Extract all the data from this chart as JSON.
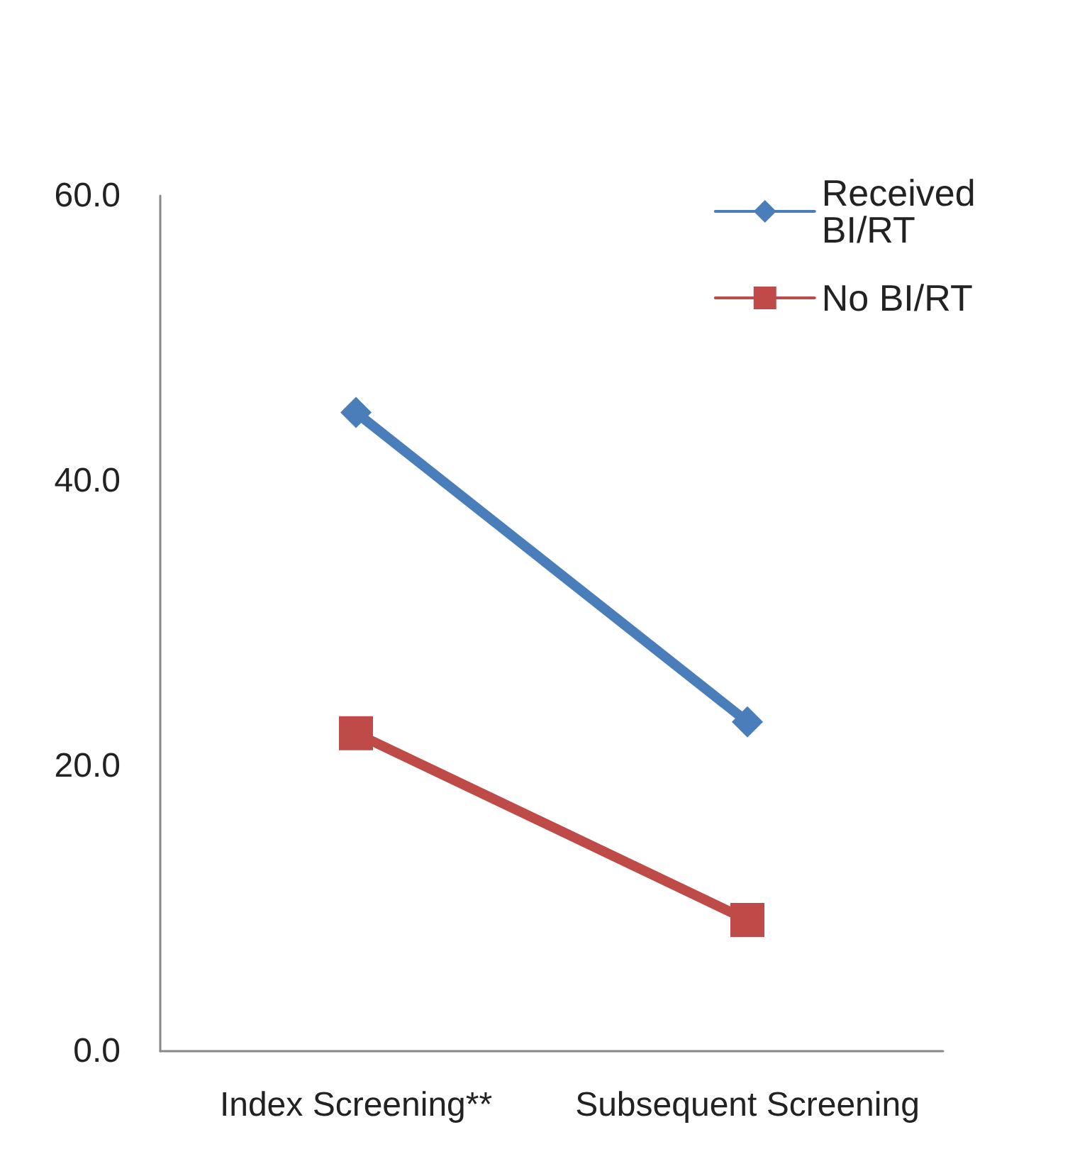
{
  "chart_data": {
    "type": "line",
    "categories": [
      "Index Screening**",
      "Subsequent Screening"
    ],
    "series": [
      {
        "name": "Received BI/RT",
        "color": "#4a7ebb",
        "marker": "diamond",
        "values": [
          44.8,
          23.1
        ]
      },
      {
        "name": "No BI/RT",
        "color": "#be4b48",
        "marker": "square",
        "values": [
          22.3,
          9.2
        ]
      }
    ],
    "ylim": [
      0,
      60
    ],
    "yticks": [
      {
        "value": 0,
        "label": "0.0"
      },
      {
        "value": 20,
        "label": "20.0"
      },
      {
        "value": 40,
        "label": "40.0"
      },
      {
        "value": 60,
        "label": "60.0"
      }
    ],
    "grid": false,
    "legend": "top right",
    "line_style": "solid"
  }
}
